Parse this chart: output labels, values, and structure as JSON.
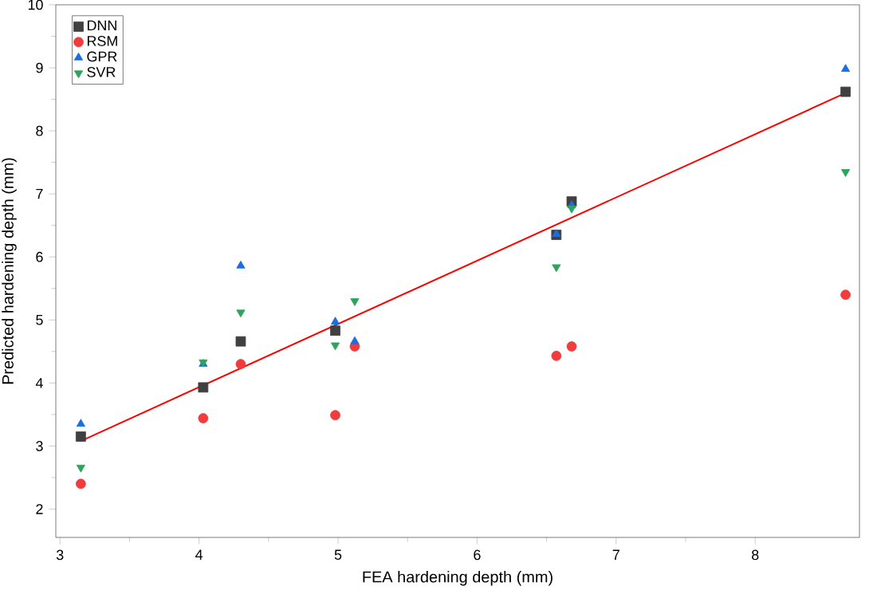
{
  "chart_data": {
    "type": "scatter",
    "xlabel": "FEA hardening depth (mm)",
    "ylabel": "Predicted hardening depth  (mm)",
    "x": [
      3.15,
      4.03,
      4.3,
      4.98,
      5.12,
      6.57,
      6.68,
      8.65
    ],
    "series": [
      {
        "name": "DNN",
        "color": "#404040",
        "marker": "square",
        "values": [
          3.15,
          3.93,
          4.66,
          4.83,
          null,
          6.35,
          6.88,
          8.62
        ]
      },
      {
        "name": "RSM",
        "color": "#f03c3c",
        "marker": "circle",
        "values": [
          2.4,
          3.44,
          4.3,
          3.49,
          4.58,
          4.43,
          4.58,
          5.4
        ]
      },
      {
        "name": "GPR",
        "color": "#1a6ee0",
        "marker": "triangle",
        "values": [
          3.35,
          4.3,
          5.86,
          4.97,
          4.66,
          6.36,
          6.82,
          8.98
        ]
      },
      {
        "name": "SVR",
        "color": "#2ea35a",
        "marker": "triangle-down",
        "values": [
          2.66,
          4.33,
          5.12,
          4.6,
          5.3,
          5.84,
          6.77,
          7.35
        ]
      },
      {
        "type": "line",
        "color": "#ff0000",
        "marker": "none",
        "x": [
          3.15,
          8.65
        ],
        "values": [
          3.08,
          8.6
        ]
      }
    ],
    "xlim": [
      2.97,
      8.75
    ],
    "ylim": [
      1.55,
      10
    ],
    "xticks": [
      3,
      4,
      5,
      6,
      7,
      8
    ],
    "yticks": [
      2,
      3,
      4,
      5,
      6,
      7,
      8,
      9,
      10
    ],
    "grid": false,
    "legend": "top left"
  }
}
